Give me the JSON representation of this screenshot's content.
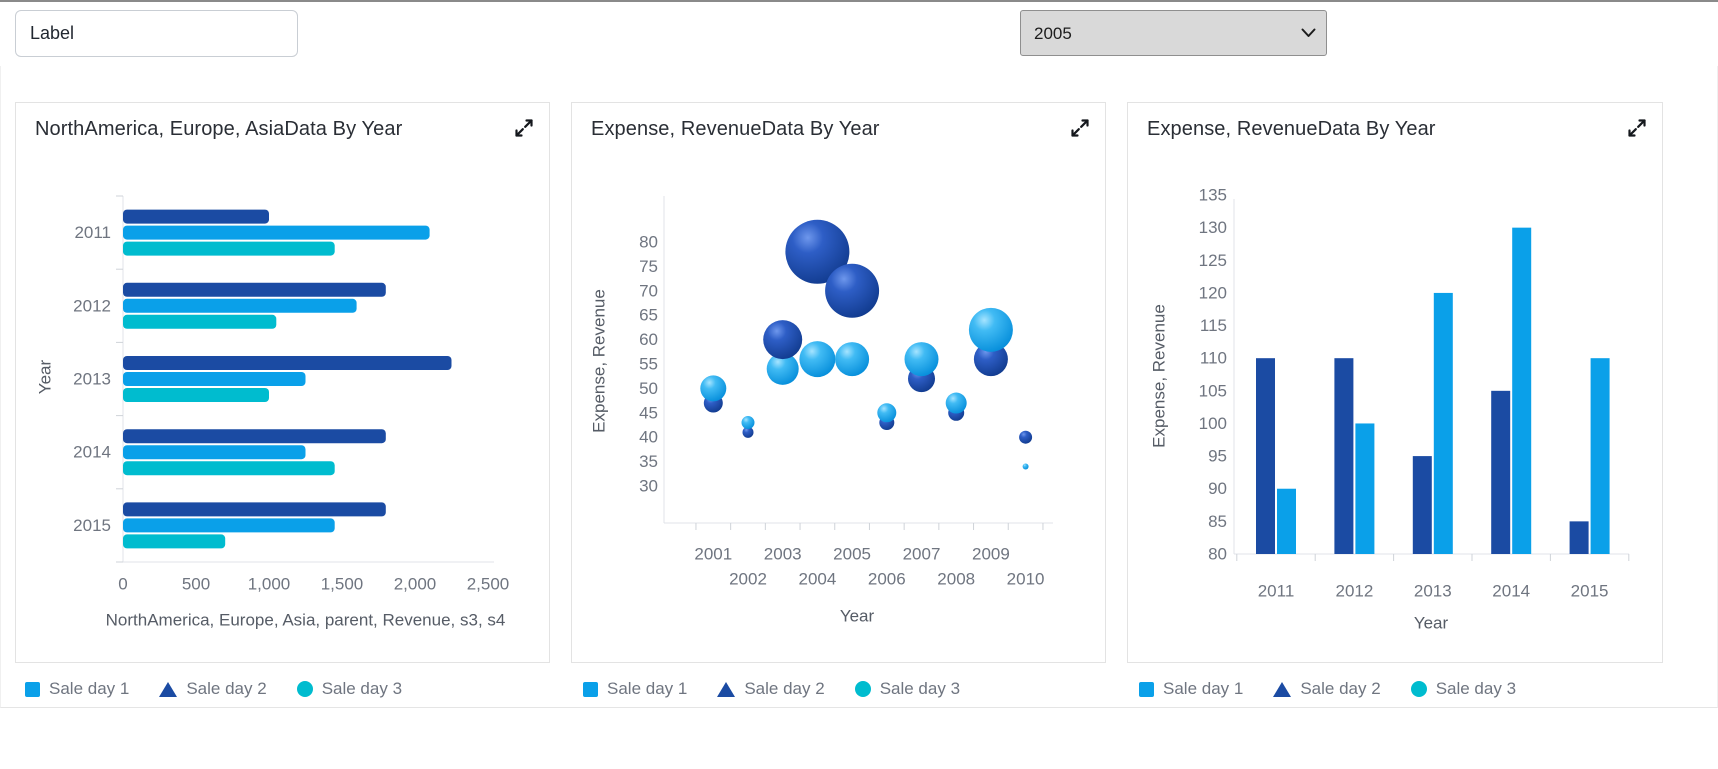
{
  "toolbar": {
    "label_input": {
      "value": "Label"
    },
    "year_select": {
      "value": "2005"
    }
  },
  "cards": [
    {
      "title": "NorthAmerica, Europe, AsiaData By Year"
    },
    {
      "title": "Expense, RevenueData By Year"
    },
    {
      "title": "Expense, RevenueData By Year"
    }
  ],
  "legend": {
    "items": [
      {
        "label": "Sale day 1",
        "shape": "square",
        "color": "#0AA0E9"
      },
      {
        "label": "Sale day 2",
        "shape": "triangle",
        "color": "#1B4BA3"
      },
      {
        "label": "Sale day 3",
        "shape": "circle",
        "color": "#00BCCF"
      }
    ]
  },
  "chart_data": [
    {
      "type": "bar",
      "orientation": "horizontal",
      "title": "NorthAmerica, Europe, AsiaData By Year",
      "categories": [
        "2011",
        "2012",
        "2013",
        "2014",
        "2015"
      ],
      "series": [
        {
          "name": "Sale day 2",
          "color": "#1B4BA3",
          "values": [
            1000,
            1800,
            2250,
            1800,
            1800
          ]
        },
        {
          "name": "Sale day 1",
          "color": "#0AA0E9",
          "values": [
            2100,
            1600,
            1250,
            1250,
            1450
          ]
        },
        {
          "name": "Sale day 3",
          "color": "#00BCCF",
          "values": [
            1450,
            1050,
            1000,
            1450,
            700
          ]
        }
      ],
      "series_visual_order": "top to bottom within each year group: Sale day 2, Sale day 1, Sale day 3",
      "xlabel": "NorthAmerica, Europe, Asia, parent, Revenue, s3, s4",
      "ylabel": "Year",
      "xlim": [
        0,
        2500
      ],
      "xticks": [
        0,
        500,
        1000,
        1500,
        2000,
        2500
      ],
      "grid": false
    },
    {
      "type": "bubble",
      "title": "Expense, RevenueData By Year",
      "xlabel": "Year",
      "ylabel": "Expense, Revenue",
      "x": [
        2001,
        2002,
        2003,
        2004,
        2005,
        2006,
        2007,
        2008,
        2009,
        2010
      ],
      "yticks": [
        30,
        35,
        40,
        45,
        50,
        55,
        60,
        65,
        70,
        75,
        80
      ],
      "ylim": [
        30,
        80
      ],
      "x_label_layout": "staggered: odd years on first row, even years on second row",
      "r_units": "approximate rendered pixel radius (bubble size dimension)",
      "series": [
        {
          "name": "Sale day 1",
          "color": "#0AA0E9",
          "points": [
            {
              "x": 2001,
              "y": 50,
              "r": 13
            },
            {
              "x": 2002,
              "y": 43,
              "r": 6.5
            },
            {
              "x": 2003,
              "y": 54,
              "r": 16
            },
            {
              "x": 2004,
              "y": 56,
              "r": 18
            },
            {
              "x": 2005,
              "y": 56,
              "r": 17
            },
            {
              "x": 2006,
              "y": 45,
              "r": 9.5
            },
            {
              "x": 2007,
              "y": 56,
              "r": 17
            },
            {
              "x": 2008,
              "y": 47,
              "r": 10.5
            },
            {
              "x": 2009,
              "y": 62,
              "r": 22
            },
            {
              "x": 2010,
              "y": 34,
              "r": 3
            }
          ]
        },
        {
          "name": "Sale day 2",
          "color": "#1B4BA3",
          "points": [
            {
              "x": 2001,
              "y": 47,
              "r": 9.5
            },
            {
              "x": 2002,
              "y": 41,
              "r": 5.5
            },
            {
              "x": 2003,
              "y": 60,
              "r": 19.5
            },
            {
              "x": 2004,
              "y": 78,
              "r": 32
            },
            {
              "x": 2005,
              "y": 70,
              "r": 27
            },
            {
              "x": 2006,
              "y": 43,
              "r": 7.5
            },
            {
              "x": 2007,
              "y": 52,
              "r": 13.5
            },
            {
              "x": 2008,
              "y": 45,
              "r": 8
            },
            {
              "x": 2009,
              "y": 56,
              "r": 17
            },
            {
              "x": 2010,
              "y": 40,
              "r": 6.5
            }
          ]
        }
      ],
      "grid": false
    },
    {
      "type": "bar",
      "orientation": "vertical",
      "title": "Expense, RevenueData By Year",
      "categories": [
        "2011",
        "2012",
        "2013",
        "2014",
        "2015"
      ],
      "series": [
        {
          "name": "Sale day 2",
          "color": "#1B4BA3",
          "values": [
            110,
            110,
            95,
            105,
            85
          ]
        },
        {
          "name": "Sale day 1",
          "color": "#0AA0E9",
          "values": [
            90,
            100,
            120,
            130,
            110
          ]
        }
      ],
      "xlabel": "Year",
      "ylabel": "Expense, Revenue",
      "ylim": [
        80,
        135
      ],
      "yticks": [
        80,
        85,
        90,
        95,
        100,
        105,
        110,
        115,
        120,
        125,
        130,
        135
      ],
      "grid": false
    }
  ],
  "icons": {
    "expand": "expand-diagonal-arrows",
    "select_arrow": "chevron-down"
  }
}
